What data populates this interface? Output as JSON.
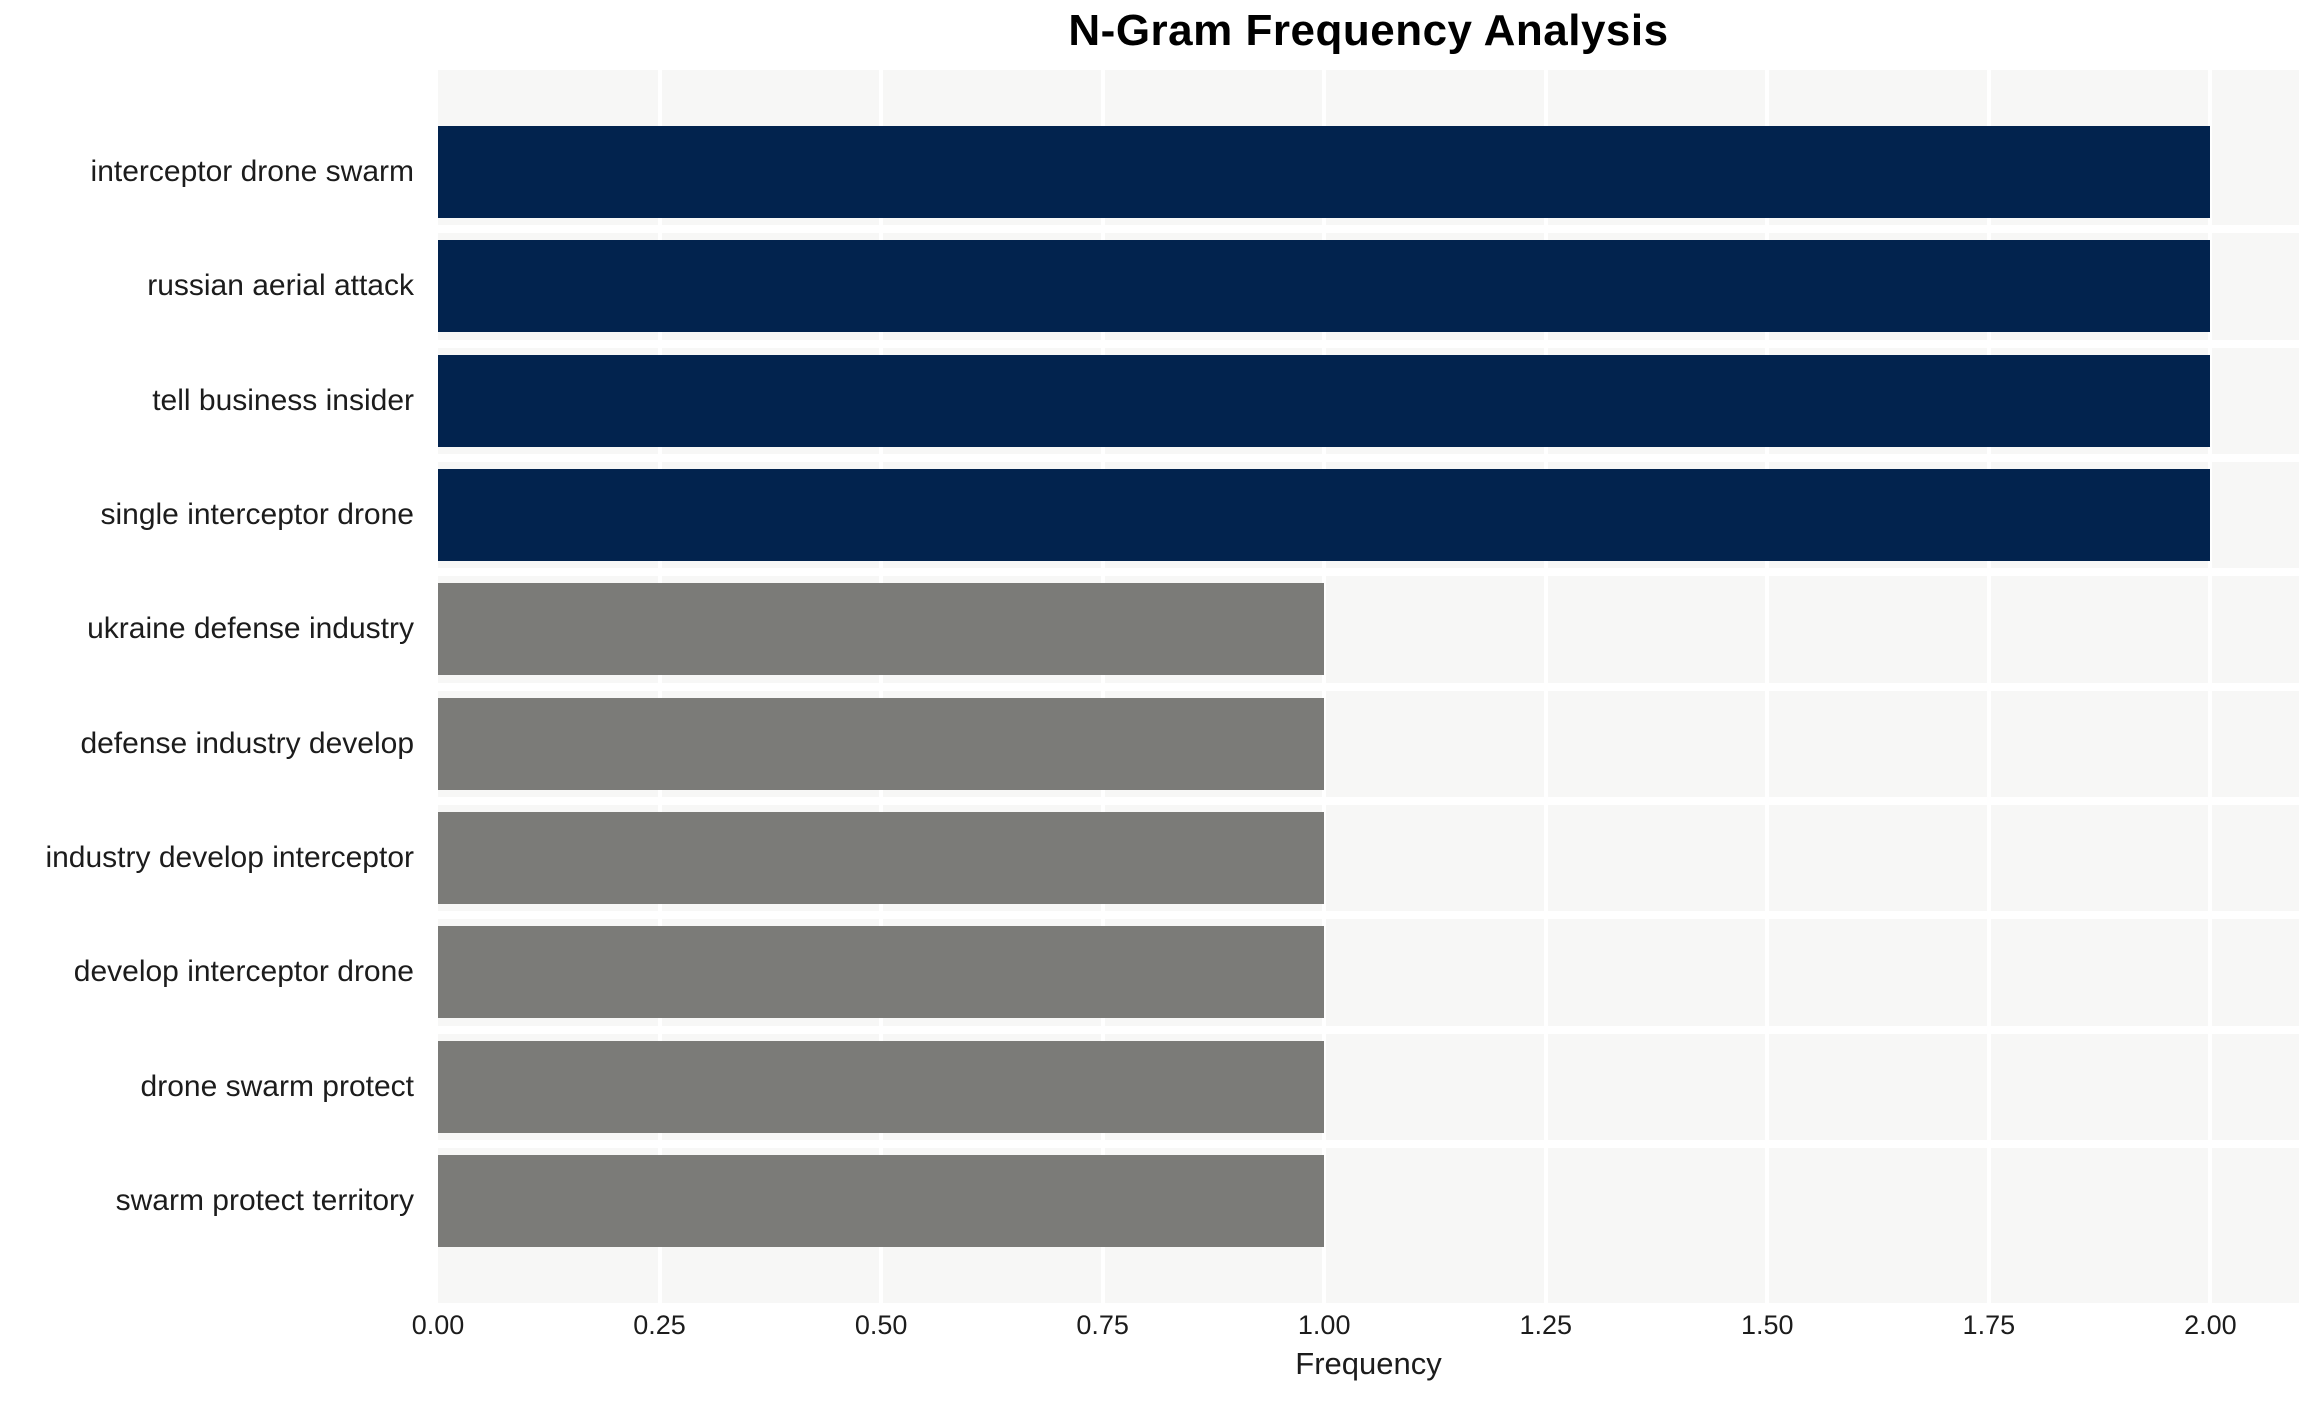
{
  "chart_data": {
    "type": "bar",
    "orientation": "horizontal",
    "title": "N-Gram Frequency Analysis",
    "xlabel": "Frequency",
    "ylabel": "",
    "categories": [
      "interceptor drone swarm",
      "russian aerial attack",
      "tell business insider",
      "single interceptor drone",
      "ukraine defense industry",
      "defense industry develop",
      "industry develop interceptor",
      "develop interceptor drone",
      "drone swarm protect",
      "swarm protect territory"
    ],
    "values": [
      2,
      2,
      2,
      2,
      1,
      1,
      1,
      1,
      1,
      1
    ],
    "bar_colors": [
      "#02234e",
      "#02234e",
      "#02234e",
      "#02234e",
      "#7b7b78",
      "#7b7b78",
      "#7b7b78",
      "#7b7b78",
      "#7b7b78",
      "#7b7b78"
    ],
    "xlim": [
      0,
      2.1
    ],
    "xticks": [
      0,
      0.25,
      0.5,
      0.75,
      1,
      1.25,
      1.5,
      1.75,
      2
    ],
    "xtick_labels": [
      "0.00",
      "0.25",
      "0.50",
      "0.75",
      "1.00",
      "1.25",
      "1.50",
      "1.75",
      "2.00"
    ],
    "grid": true,
    "legend": false,
    "colors": {
      "bar_high": "#02234e",
      "bar_low": "#7b7b78",
      "plot_background": "#f7f7f6",
      "grid_line": "#ffffff",
      "text": "#1c1c1c",
      "title": "#000000",
      "page_background": "#ffffff"
    }
  }
}
